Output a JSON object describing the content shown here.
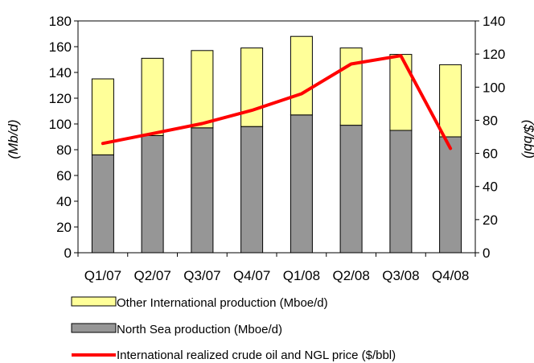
{
  "chart_data": {
    "type": "bar",
    "stacked": true,
    "categories": [
      "Q1/07",
      "Q2/07",
      "Q3/07",
      "Q4/07",
      "Q1/08",
      "Q2/08",
      "Q3/08",
      "Q4/08"
    ],
    "series": [
      {
        "name": "North Sea production (Mboe/d)",
        "type": "bar",
        "axis": "left",
        "color": "#969696",
        "values": [
          76,
          91,
          97,
          98,
          107,
          99,
          95,
          90
        ]
      },
      {
        "name": "Other International production (Mboe/d)",
        "type": "bar",
        "axis": "left",
        "color": "#FFFF99",
        "values": [
          59,
          60,
          60,
          61,
          61,
          60,
          59,
          56
        ]
      },
      {
        "name": "International realized crude oil and NGL price ($/bbl)",
        "type": "line",
        "axis": "right",
        "color": "#FF0000",
        "values": [
          66,
          72,
          78,
          86,
          96,
          114,
          119,
          63
        ]
      }
    ],
    "ylabel": "(Mb/d)",
    "y2label": "($/bbl)",
    "ylim": [
      0,
      180
    ],
    "yticks": [
      0,
      20,
      40,
      60,
      80,
      100,
      120,
      140,
      160,
      180
    ],
    "y2lim": [
      0,
      140
    ],
    "y2ticks": [
      0,
      20,
      40,
      60,
      80,
      100,
      120,
      140
    ],
    "grid": false,
    "legend_position": "bottom"
  }
}
